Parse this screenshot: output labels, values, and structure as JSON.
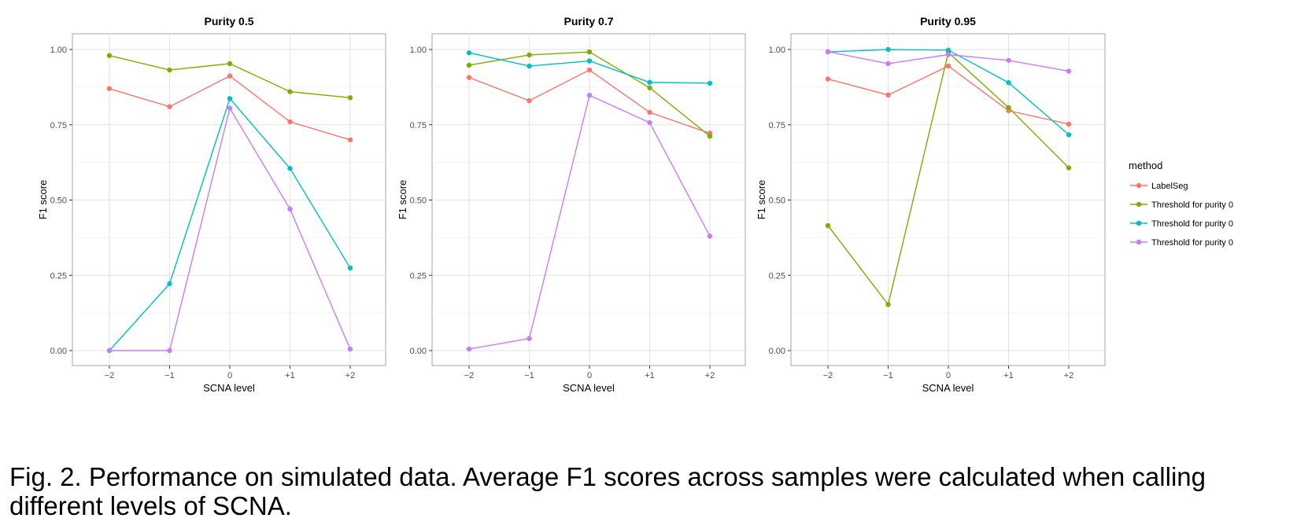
{
  "caption": "Fig. 2. Performance on simulated data. Average F1 scores across samples were calculated when calling different levels of SCNA.",
  "legend": {
    "title": "method",
    "entries": [
      "LabelSeg",
      "Threshold for purity 0",
      "Threshold for purity 0",
      "Threshold for purity 0"
    ]
  },
  "chart_data": [
    {
      "type": "line",
      "title": "Purity 0.5",
      "xlabel": "SCNA level",
      "ylabel": "F1 score",
      "categories": [
        "−2",
        "−1",
        "0",
        "+1",
        "+2"
      ],
      "yticks": [
        "0.00",
        "0.25",
        "0.50",
        "0.75",
        "1.00"
      ],
      "ylim": [
        0,
        1
      ],
      "grid": true,
      "legend_position": "right",
      "series": [
        {
          "name": "LabelSeg",
          "color": "#F8766D",
          "values": [
            0.87,
            0.81,
            0.912,
            0.76,
            0.7
          ]
        },
        {
          "color": "#7CAE00",
          "values": [
            0.98,
            0.932,
            0.953,
            0.86,
            0.84
          ]
        },
        {
          "color": "#00BFC4",
          "values": [
            0.0,
            0.222,
            0.837,
            0.605,
            0.274
          ]
        },
        {
          "color": "#C77CFF",
          "values": [
            0.0,
            0.0,
            0.805,
            0.47,
            0.005
          ]
        }
      ]
    },
    {
      "type": "line",
      "title": "Purity 0.7",
      "xlabel": "SCNA level",
      "ylabel": "F1 score",
      "categories": [
        "−2",
        "−1",
        "0",
        "+1",
        "+2"
      ],
      "yticks": [
        "0.00",
        "0.25",
        "0.50",
        "0.75",
        "1.00"
      ],
      "ylim": [
        0,
        1
      ],
      "grid": true,
      "legend_position": "right",
      "series": [
        {
          "name": "LabelSeg",
          "color": "#F8766D",
          "values": [
            0.907,
            0.83,
            0.932,
            0.791,
            0.722
          ]
        },
        {
          "color": "#7CAE00",
          "values": [
            0.948,
            0.982,
            0.992,
            0.873,
            0.712
          ]
        },
        {
          "color": "#00BFC4",
          "values": [
            0.989,
            0.945,
            0.962,
            0.891,
            0.888
          ]
        },
        {
          "color": "#C77CFF",
          "values": [
            0.005,
            0.04,
            0.848,
            0.757,
            0.38
          ]
        }
      ]
    },
    {
      "type": "line",
      "title": "Purity 0.95",
      "xlabel": "SCNA level",
      "ylabel": "F1 score",
      "categories": [
        "−2",
        "−1",
        "0",
        "+1",
        "+2"
      ],
      "yticks": [
        "0.00",
        "0.25",
        "0.50",
        "0.75",
        "1.00"
      ],
      "ylim": [
        0,
        1
      ],
      "grid": true,
      "legend_position": "right",
      "series": [
        {
          "name": "LabelSeg",
          "color": "#F8766D",
          "values": [
            0.902,
            0.849,
            0.945,
            0.797,
            0.752
          ]
        },
        {
          "color": "#7CAE00",
          "values": [
            0.415,
            0.153,
            0.99,
            0.807,
            0.607
          ]
        },
        {
          "color": "#00BFC4",
          "values": [
            0.992,
            1.0,
            0.998,
            0.89,
            0.717
          ]
        },
        {
          "color": "#C77CFF",
          "values": [
            0.993,
            0.953,
            0.983,
            0.964,
            0.928
          ]
        }
      ]
    }
  ]
}
